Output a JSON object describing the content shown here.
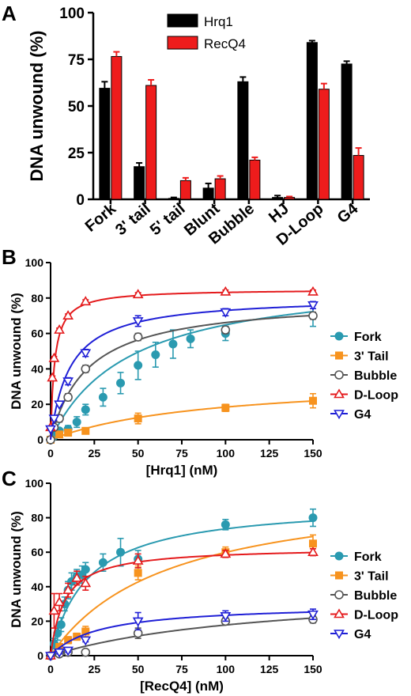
{
  "chart_data": [
    {
      "panel": "A",
      "type": "bar",
      "categories": [
        "Fork",
        "3' tail",
        "5' tail",
        "Blunt",
        "Bubble",
        "HJ",
        "D-Loop",
        "G4"
      ],
      "ylabel": "DNA unwound (%)",
      "ylim": [
        0,
        100
      ],
      "yticks": [
        0,
        25,
        50,
        75,
        100
      ],
      "legend_position": "top-right",
      "series": [
        {
          "name": "Hrq1",
          "color": "#000000",
          "values": [
            59.5,
            17.5,
            0.5,
            6,
            63,
            1,
            84,
            72.5
          ],
          "errors": [
            3.5,
            2,
            0.5,
            2.5,
            2.5,
            1,
            1,
            1.5
          ]
        },
        {
          "name": "RecQ4",
          "color": "#ee1c1c",
          "values": [
            76.5,
            61,
            10,
            11,
            21,
            1,
            59,
            23.5
          ],
          "errors": [
            2.5,
            3,
            1.5,
            1.5,
            1.5,
            0.5,
            3,
            4
          ]
        }
      ]
    },
    {
      "panel": "B",
      "type": "scatter",
      "xlabel": "[Hrq1] (nM)",
      "ylabel": "DNA unwound (%)",
      "xlim": [
        0,
        150
      ],
      "ylim": [
        0,
        100
      ],
      "xticks": [
        0,
        25,
        50,
        75,
        100,
        125,
        150
      ],
      "yticks": [
        0,
        20,
        40,
        60,
        80,
        100
      ],
      "legend_position": "right",
      "series": [
        {
          "name": "Fork",
          "color": "#2a9ab0",
          "marker": "circle-filled",
          "x": [
            0,
            2,
            5,
            10,
            15,
            20,
            30,
            40,
            50,
            60,
            70,
            80,
            100,
            150
          ],
          "y": [
            0,
            2,
            5,
            6,
            10,
            17,
            24,
            32,
            42,
            48,
            54,
            57,
            60,
            70
          ],
          "err": [
            0,
            1,
            1,
            2,
            3,
            3,
            5,
            6,
            8,
            7,
            8,
            5,
            4,
            6
          ],
          "fit": {
            "vmax": 94,
            "k": 45
          }
        },
        {
          "name": "3' Tail",
          "color": "#f7931e",
          "marker": "square-filled",
          "x": [
            0,
            5,
            10,
            20,
            50,
            100,
            150
          ],
          "y": [
            0,
            3,
            4,
            5,
            12,
            18,
            22
          ],
          "err": [
            0,
            1,
            1,
            1,
            3,
            2,
            4
          ],
          "fit": {
            "vmax": 35,
            "k": 90
          }
        },
        {
          "name": "Bubble",
          "color": "#555555",
          "marker": "circle-open",
          "x": [
            0,
            2,
            5,
            10,
            20,
            50,
            100,
            150
          ],
          "y": [
            0,
            7,
            12,
            24,
            40,
            58,
            62,
            70
          ],
          "err": [
            0,
            1,
            2,
            2,
            2,
            2,
            2,
            2
          ],
          "fit": {
            "vmax": 80,
            "k": 21
          }
        },
        {
          "name": "D-Loop",
          "color": "#e41a1c",
          "marker": "triangle-up-open",
          "x": [
            0,
            1,
            2,
            5,
            10,
            20,
            50,
            100,
            150
          ],
          "y": [
            7,
            35,
            46,
            62,
            70,
            78,
            82,
            83.5,
            83.5
          ],
          "err": [
            0,
            1,
            1,
            1,
            1,
            1,
            1,
            1,
            1
          ],
          "fit": {
            "vmax": 85,
            "k": 2.2
          }
        },
        {
          "name": "G4",
          "color": "#1f1fd6",
          "marker": "triangle-down-open",
          "x": [
            0,
            2,
            5,
            10,
            20,
            50,
            100,
            150
          ],
          "y": [
            6,
            12,
            20,
            33,
            49,
            67,
            72,
            76
          ],
          "err": [
            0,
            1,
            1,
            2,
            2,
            3,
            2,
            2
          ],
          "fit": {
            "vmax": 81,
            "k": 11
          }
        }
      ]
    },
    {
      "panel": "C",
      "type": "scatter",
      "xlabel": "[RecQ4] (nM)",
      "ylabel": "DNA unwound (%)",
      "xlim": [
        0,
        150
      ],
      "ylim": [
        0,
        100
      ],
      "xticks": [
        0,
        25,
        50,
        75,
        100,
        125,
        150
      ],
      "yticks": [
        0,
        20,
        40,
        60,
        80,
        100
      ],
      "legend_position": "right",
      "series": [
        {
          "name": "Fork",
          "color": "#2a9ab0",
          "marker": "circle-filled",
          "x": [
            0,
            2,
            4,
            6,
            8,
            10,
            12,
            15,
            18,
            20,
            30,
            40,
            50,
            100,
            150
          ],
          "y": [
            0,
            7,
            13,
            18,
            30,
            38,
            43,
            46,
            47,
            50,
            54,
            60,
            56,
            76,
            80
          ],
          "err": [
            0,
            3,
            4,
            4,
            4,
            5,
            5,
            4,
            5,
            4,
            5,
            8,
            5,
            3,
            5
          ],
          "fit": {
            "vmax": 89,
            "k": 21
          }
        },
        {
          "name": "3' Tail",
          "color": "#f7931e",
          "marker": "square-filled",
          "x": [
            0,
            5,
            10,
            15,
            20,
            50,
            100,
            150
          ],
          "y": [
            0,
            5,
            9,
            11,
            14,
            48,
            60,
            65
          ],
          "err": [
            0,
            2,
            2,
            2,
            3,
            4,
            3,
            5
          ],
          "fit": {
            "vmax": 100,
            "k": 67
          }
        },
        {
          "name": "Bubble",
          "color": "#555555",
          "marker": "circle-open",
          "x": [
            0,
            5,
            10,
            20,
            50,
            100,
            150
          ],
          "y": [
            0,
            1,
            2,
            2,
            13,
            20,
            21
          ],
          "err": [
            0,
            1,
            1,
            1,
            3,
            2,
            2
          ],
          "fit": {
            "vmax": 40,
            "k": 125
          }
        },
        {
          "name": "D-Loop",
          "color": "#e41a1c",
          "marker": "triangle-up-open",
          "x": [
            0,
            2,
            5,
            10,
            15,
            20,
            50,
            100,
            150
          ],
          "y": [
            0,
            26,
            31,
            38,
            45,
            42,
            55,
            59,
            60
          ],
          "err": [
            0,
            10,
            5,
            4,
            4,
            4,
            4,
            2,
            2
          ],
          "fit": {
            "vmax": 63,
            "k": 8
          }
        },
        {
          "name": "G4",
          "color": "#1f1fd6",
          "marker": "triangle-down-open",
          "x": [
            0,
            5,
            10,
            20,
            50,
            100,
            150
          ],
          "y": [
            0,
            2,
            3,
            9,
            20,
            23,
            24
          ],
          "err": [
            0,
            1,
            1,
            1,
            5,
            3,
            3
          ],
          "fit": {
            "vmax": 30,
            "k": 28
          }
        }
      ]
    }
  ]
}
